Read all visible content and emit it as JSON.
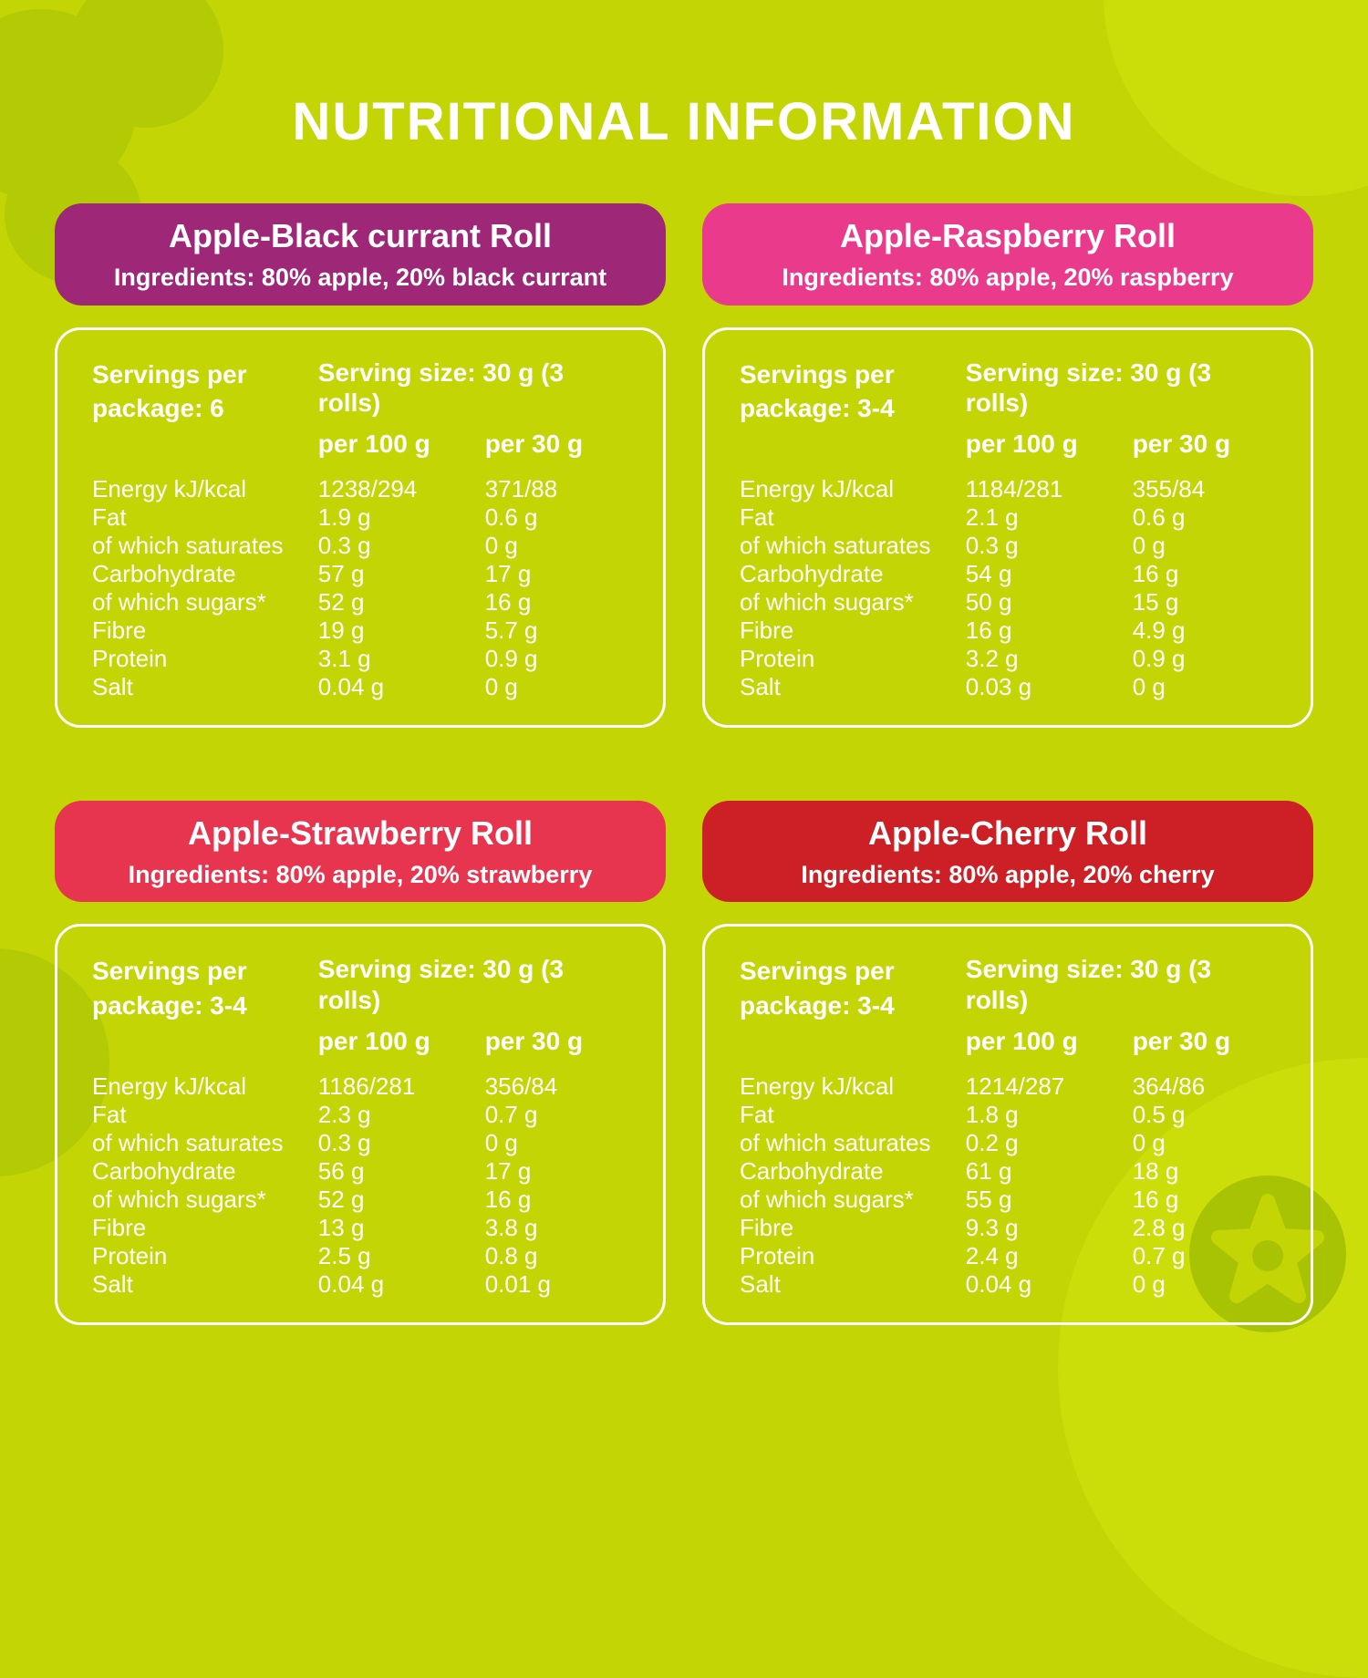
{
  "page": {
    "title": "NUTRITIONAL INFORMATION"
  },
  "colors": {
    "background": "#c3d505",
    "text": "#ffffff",
    "deco_dark": "#b2cb04",
    "deco_light": "#ccde0a"
  },
  "panels": [
    {
      "name": "Apple-Black currant Roll",
      "ingredients": "Ingredients: 80% apple, 20% black currant",
      "accent": "#9e2777",
      "servings": "Servings per package: 6",
      "serving_size": "Serving size: 30 g (3 rolls)",
      "col_per_100": "per 100 g",
      "col_per_30": "per 30 g",
      "rows": [
        [
          "Energy kJ/kcal",
          "1238/294",
          "371/88"
        ],
        [
          "Fat",
          "1.9 g",
          "0.6 g"
        ],
        [
          "of which saturates",
          "0.3 g",
          "0 g"
        ],
        [
          "Carbohydrate",
          "57 g",
          "17 g"
        ],
        [
          "of which sugars*",
          "52 g",
          "16 g"
        ],
        [
          "Fibre",
          "19 g",
          "5.7 g"
        ],
        [
          "Protein",
          "3.1 g",
          "0.9 g"
        ],
        [
          "Salt",
          "0.04 g",
          "0 g"
        ]
      ]
    },
    {
      "name": "Apple-Raspberry Roll",
      "ingredients": "Ingredients: 80% apple, 20% raspberry",
      "accent": "#ea3a8c",
      "servings": "Servings per package: 3-4",
      "serving_size": "Serving size: 30 g (3 rolls)",
      "col_per_100": "per 100 g",
      "col_per_30": "per 30 g",
      "rows": [
        [
          "Energy kJ/kcal",
          "1184/281",
          "355/84"
        ],
        [
          "Fat",
          "2.1 g",
          "0.6 g"
        ],
        [
          "of which saturates",
          "0.3 g",
          "0 g"
        ],
        [
          "Carbohydrate",
          "54 g",
          "16 g"
        ],
        [
          "of which sugars*",
          "50 g",
          "15 g"
        ],
        [
          "Fibre",
          "16 g",
          "4.9 g"
        ],
        [
          "Protein",
          "3.2 g",
          "0.9 g"
        ],
        [
          "Salt",
          "0.03 g",
          "0 g"
        ]
      ]
    },
    {
      "name": "Apple-Strawberry Roll",
      "ingredients": "Ingredients: 80% apple, 20% strawberry",
      "accent": "#e8354f",
      "servings": "Servings per package: 3-4",
      "serving_size": "Serving size: 30 g (3 rolls)",
      "col_per_100": "per 100 g",
      "col_per_30": "per 30 g",
      "rows": [
        [
          "Energy kJ/kcal",
          "1186/281",
          "356/84"
        ],
        [
          "Fat",
          "2.3 g",
          "0.7 g"
        ],
        [
          "of which saturates",
          "0.3 g",
          "0 g"
        ],
        [
          "Carbohydrate",
          "56 g",
          "17 g"
        ],
        [
          "of which sugars*",
          "52 g",
          "16 g"
        ],
        [
          "Fibre",
          "13 g",
          "3.8 g"
        ],
        [
          "Protein",
          "2.5 g",
          "0.8 g"
        ],
        [
          "Salt",
          "0.04 g",
          "0.01 g"
        ]
      ]
    },
    {
      "name": "Apple-Cherry Roll",
      "ingredients": "Ingredients: 80% apple, 20% cherry",
      "accent": "#cc2026",
      "servings": "Servings per package: 3-4",
      "serving_size": "Serving size: 30 g (3 rolls)",
      "col_per_100": "per 100 g",
      "col_per_30": "per 30 g",
      "rows": [
        [
          "Energy kJ/kcal",
          "1214/287",
          "364/86"
        ],
        [
          "Fat",
          "1.8 g",
          "0.5 g"
        ],
        [
          "of which saturates",
          "0.2 g",
          "0 g"
        ],
        [
          "Carbohydrate",
          "61 g",
          "18 g"
        ],
        [
          "of which sugars*",
          "55 g",
          "16 g"
        ],
        [
          "Fibre",
          "9.3 g",
          "2.8 g"
        ],
        [
          "Protein",
          "2.4 g",
          "0.7 g"
        ],
        [
          "Salt",
          "0.04 g",
          "0 g"
        ]
      ]
    }
  ]
}
